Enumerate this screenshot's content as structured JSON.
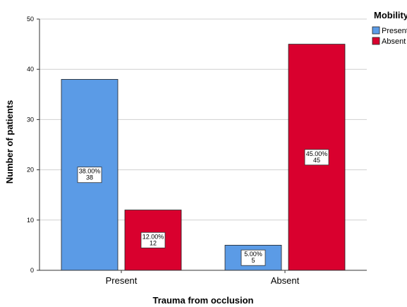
{
  "chart_data": {
    "type": "bar",
    "title": "",
    "xlabel": "Trauma from occlusion",
    "ylabel": "Number of patients",
    "categories": [
      "Present",
      "Absent"
    ],
    "ylim": [
      0,
      50
    ],
    "yticks": [
      "0",
      "10",
      "20",
      "30",
      "40",
      "50"
    ],
    "grid": "horizontal",
    "legend": {
      "title": "Mobility",
      "placement": "top-right"
    },
    "series": [
      {
        "name": "Present",
        "color": "#5b9be6",
        "values": [
          38,
          5
        ],
        "labels": [
          "38.00%",
          "5.00%"
        ]
      },
      {
        "name": "Absent",
        "color": "#d9002e",
        "values": [
          12,
          45
        ],
        "labels": [
          "12.00%",
          "45.00%"
        ]
      }
    ]
  }
}
